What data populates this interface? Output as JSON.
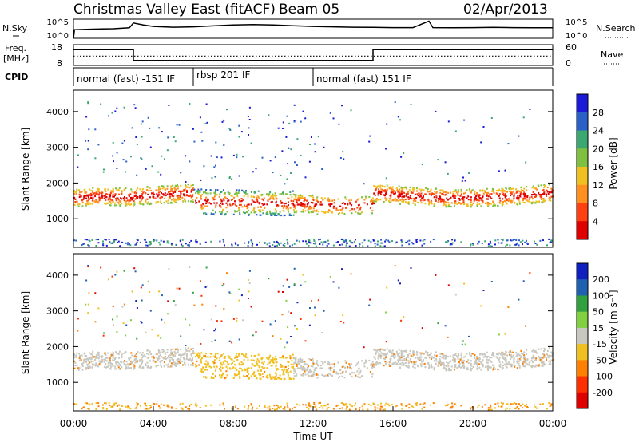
{
  "header": {
    "title": "Christmas Valley East (fitACF)",
    "beam": "Beam 05",
    "date": "02/Apr/2013"
  },
  "chart_data": [
    {
      "name": "n-sky-n-search",
      "type": "line",
      "left_label": "N.Sky",
      "right_label": "N.Search",
      "left_ticks": [
        "10^5",
        "10^0"
      ],
      "right_ticks": [
        "10^5",
        "10^0"
      ],
      "x": [
        0,
        0.05,
        1,
        2,
        2.8,
        3,
        3.5,
        4,
        5,
        6,
        7,
        8,
        9,
        10,
        11,
        12,
        13,
        14,
        15,
        16,
        17,
        17.8,
        18,
        19,
        20,
        21,
        22,
        23,
        24
      ],
      "series": [
        {
          "values": [
            0.0,
            0.45,
            0.48,
            0.5,
            0.55,
            0.8,
            0.7,
            0.62,
            0.58,
            0.6,
            0.65,
            0.7,
            0.72,
            0.7,
            0.66,
            0.62,
            0.6,
            0.58,
            0.57,
            0.56,
            0.56,
            0.9,
            0.56,
            0.55,
            0.56,
            0.57,
            0.56,
            0.55,
            0.55
          ]
        }
      ]
    },
    {
      "name": "freq-nave",
      "type": "line",
      "left_label": "Freq.",
      "left_unit": "[MHz]",
      "right_label": "Nave",
      "left_ticks": [
        "18",
        "8"
      ],
      "right_ticks": [
        "60",
        "0"
      ],
      "freq_x": [
        0,
        3,
        3,
        15,
        15,
        24
      ],
      "freq_mhz": [
        15.6,
        15.6,
        10.4,
        10.4,
        15.6,
        15.6
      ],
      "nave_x": [
        0,
        3,
        3,
        15,
        15,
        24
      ],
      "nave": [
        27,
        27,
        27,
        27,
        27,
        27
      ]
    },
    {
      "name": "cpid",
      "type": "table",
      "label": "CPID",
      "segments": [
        {
          "start": 0,
          "end": 6,
          "text": "normal (fast) -151 IF"
        },
        {
          "start": 6,
          "end": 12,
          "text": "rbsp 201 IF"
        },
        {
          "start": 12,
          "end": 24,
          "text": "normal (fast) 151 IF"
        }
      ]
    },
    {
      "name": "power",
      "type": "heatmap",
      "ylabel": "Slant Range [km]",
      "y_ticks": [
        1000,
        2000,
        3000,
        4000
      ],
      "ylim": [
        200,
        4600
      ],
      "colorbar_label": "Power [dB]",
      "colorbar_ticks": [
        "4",
        "8",
        "12",
        "16",
        "20",
        "24",
        "28"
      ],
      "colors": [
        "#1a1ad8",
        "#2a60c8",
        "#3aa870",
        "#80c040",
        "#f0c020",
        "#ff9020",
        "#ff4010",
        "#e00000"
      ]
    },
    {
      "name": "velocity",
      "type": "heatmap",
      "ylabel": "Slant Range [km]",
      "y_ticks": [
        1000,
        2000,
        3000,
        4000
      ],
      "ylim": [
        200,
        4600
      ],
      "xlabel": "Time UT",
      "x_ticks": [
        "00:00",
        "04:00",
        "08:00",
        "12:00",
        "16:00",
        "20:00",
        "00:00"
      ],
      "colorbar_label": "Velocity [m s⁻¹]",
      "colorbar_ticks": [
        "200",
        "100",
        "50",
        "15",
        "-15",
        "-50",
        "-100",
        "-200"
      ],
      "colors": [
        "#1020c0",
        "#2060b0",
        "#30a040",
        "#80d040",
        "#c8c8c0",
        "#f0c020",
        "#ff8000",
        "#ff3000",
        "#e00000"
      ]
    }
  ]
}
